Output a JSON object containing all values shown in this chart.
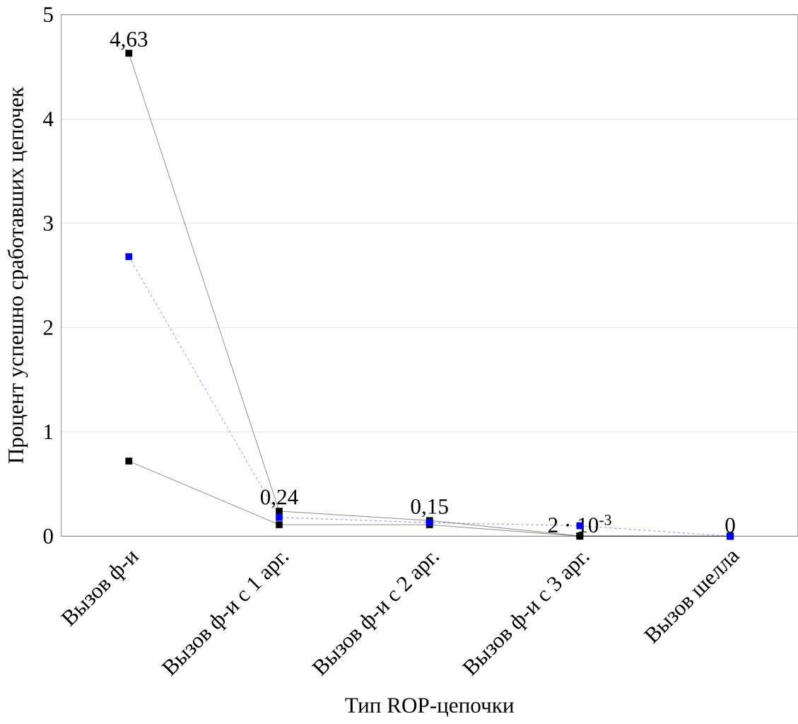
{
  "chart_data": {
    "type": "line",
    "xlabel": "Тип ROP-цепочки",
    "ylabel": "Процент успешно сработавших цепочек",
    "categories": [
      "Вызов ф-и",
      "Вызов ф-и с 1 арг.",
      "Вызов ф-и с 2 арг.",
      "Вызов ф-и с 3 арг.",
      "Вызов шелла"
    ],
    "series": [
      {
        "color": "#000000",
        "line_style": "solid",
        "values": [
          4.63,
          0.24,
          0.15,
          0.002,
          0
        ],
        "value_labels": [
          "4,63",
          "0,24",
          "0,15",
          "2 · 10$^{-3}$",
          "0"
        ]
      },
      {
        "color": "#000000",
        "line_style": "solid",
        "values": [
          0.72,
          0.11,
          0.11,
          0,
          0
        ]
      },
      {
        "color": "#0000ff",
        "line_style": "dashed",
        "values": [
          2.68,
          0.18,
          0.13,
          0.1,
          0
        ]
      }
    ],
    "ylim": [
      0,
      5
    ],
    "yticks": [
      0,
      1,
      2,
      3,
      4,
      5
    ],
    "grid": "y",
    "marker": "square"
  }
}
